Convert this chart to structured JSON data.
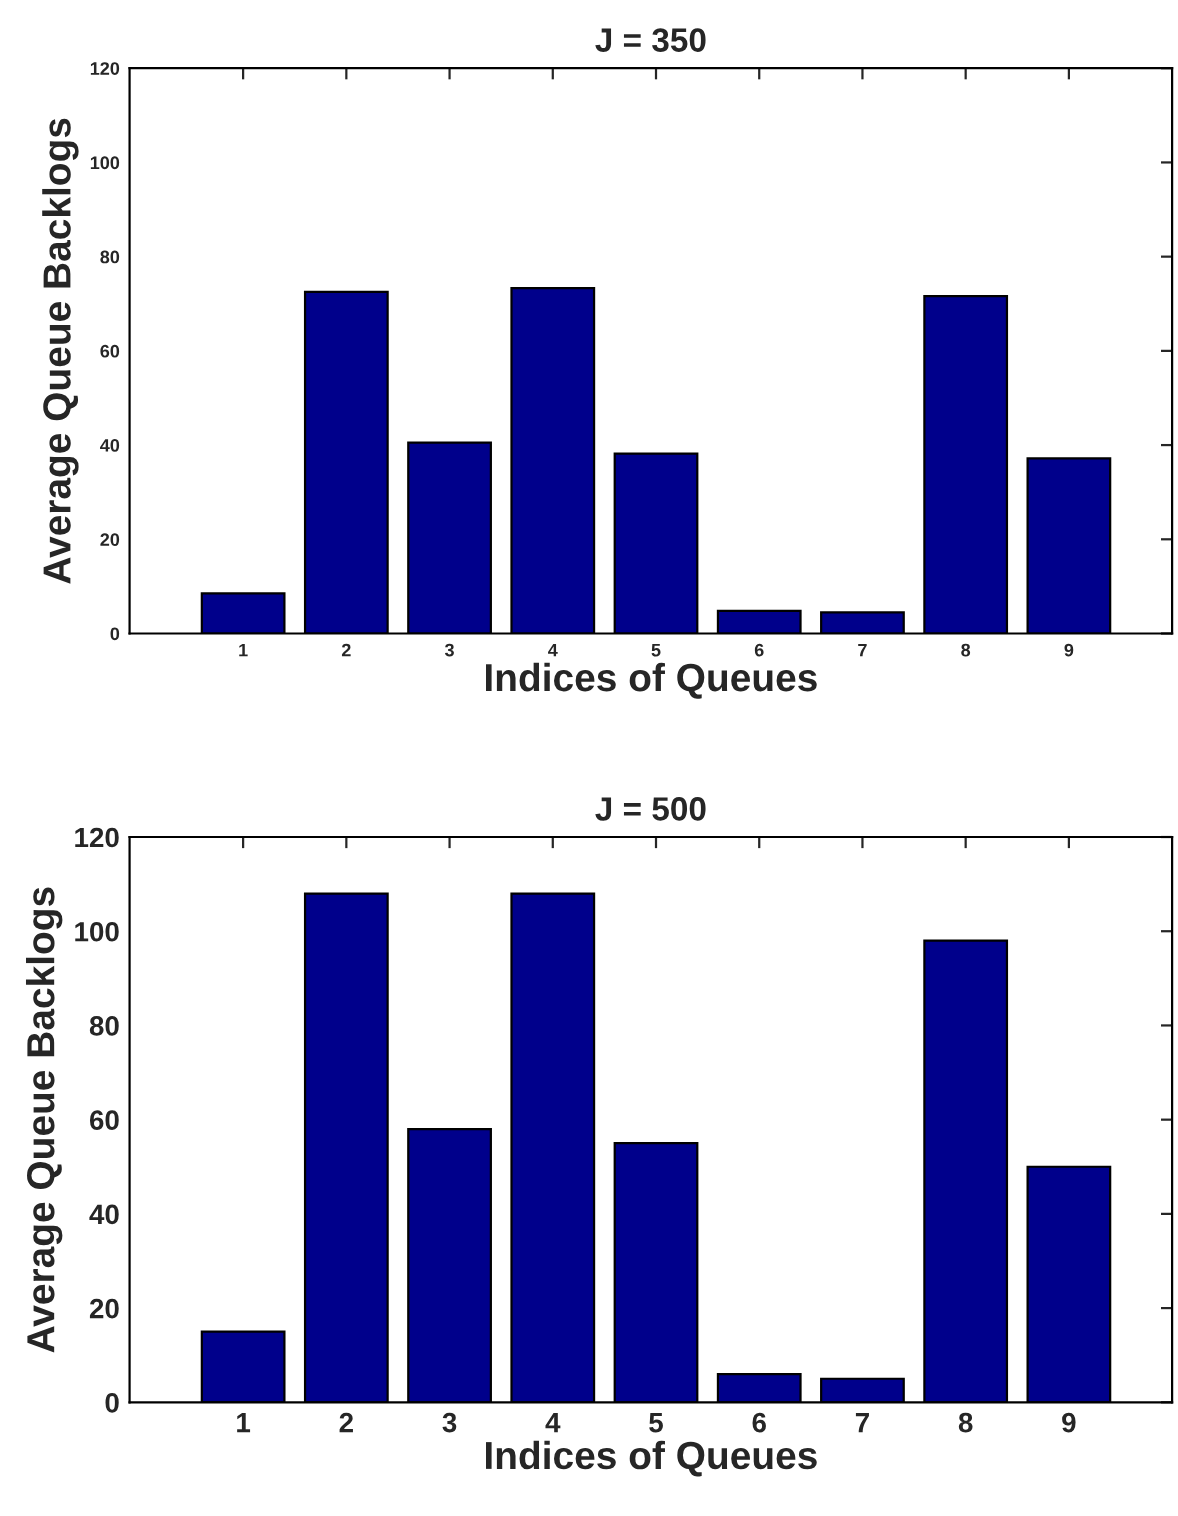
{
  "chart_data": [
    {
      "type": "bar",
      "title": "J = 350",
      "xlabel": "Indices of Queues",
      "ylabel": "Average Queue Backlogs",
      "categories": [
        "1",
        "2",
        "3",
        "4",
        "5",
        "6",
        "7",
        "8",
        "9"
      ],
      "series": [
        {
          "color": "#00008b",
          "values": [
            8.5,
            72.5,
            40.5,
            73.3,
            38.2,
            4.8,
            4.5,
            71.6,
            37.2
          ]
        }
      ],
      "ylim": [
        0,
        120
      ],
      "yticks": [
        0,
        20,
        40,
        60,
        80,
        100,
        120
      ],
      "grid": false,
      "legend": false
    },
    {
      "type": "bar",
      "title": "J = 500",
      "xlabel": "Indices of Queues",
      "ylabel": "Average Queue Backlogs",
      "categories": [
        "1",
        "2",
        "3",
        "4",
        "5",
        "6",
        "7",
        "8",
        "9"
      ],
      "series": [
        {
          "color": "#00008b",
          "values": [
            15,
            108,
            58,
            108,
            55,
            6,
            5,
            98,
            50
          ]
        }
      ],
      "ylim": [
        0,
        120
      ],
      "yticks": [
        0,
        20,
        40,
        60,
        80,
        100,
        120
      ],
      "grid": false,
      "legend": false
    }
  ]
}
